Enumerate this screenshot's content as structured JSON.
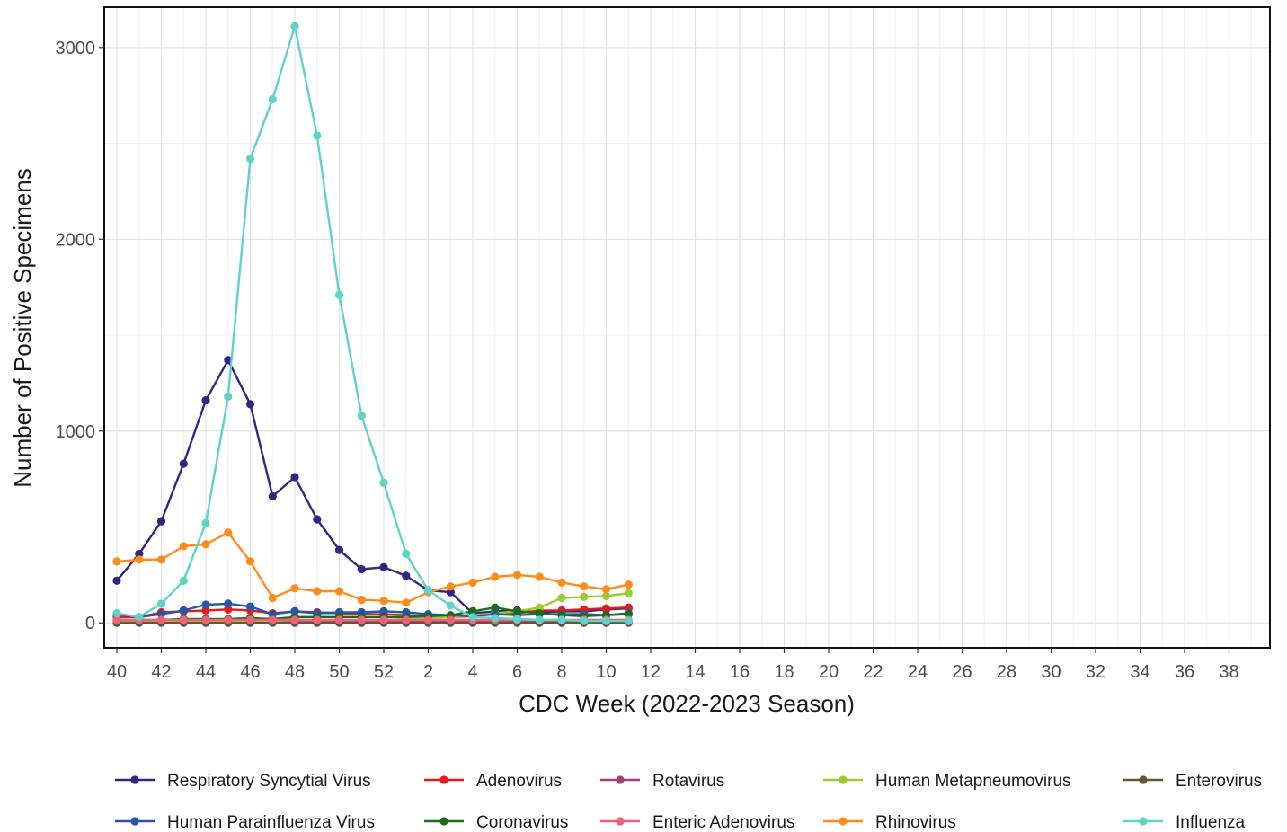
{
  "chart_data": {
    "type": "line",
    "title": "",
    "xlabel": "CDC Week (2022-2023 Season)",
    "ylabel": "Number of Positive Specimens",
    "x_tick_labels": [
      "40",
      "42",
      "44",
      "46",
      "48",
      "50",
      "52",
      "2",
      "4",
      "6",
      "8",
      "10",
      "12",
      "14",
      "16",
      "18",
      "20",
      "22",
      "24",
      "26",
      "28",
      "30",
      "32",
      "34",
      "36",
      "38"
    ],
    "x_weeks": [
      "40",
      "41",
      "42",
      "43",
      "44",
      "45",
      "46",
      "47",
      "48",
      "49",
      "50",
      "51",
      "52",
      "1",
      "2",
      "3",
      "4",
      "5",
      "6",
      "7",
      "8",
      "9",
      "10",
      "11"
    ],
    "y_ticks": [
      0,
      1000,
      2000,
      3000
    ],
    "ylim": [
      -130,
      3210
    ],
    "grid": true,
    "legend_position": "bottom",
    "series": [
      {
        "name": "Respiratory Syncytial Virus",
        "color": "#312783",
        "values": [
          220,
          360,
          530,
          830,
          1160,
          1370,
          1140,
          660,
          760,
          540,
          380,
          280,
          290,
          245,
          170,
          160,
          50,
          60,
          65,
          55,
          60,
          60,
          70,
          75
        ]
      },
      {
        "name": "Adenovirus",
        "color": "#e41a1c",
        "values": [
          30,
          30,
          55,
          60,
          65,
          70,
          65,
          50,
          60,
          55,
          50,
          45,
          45,
          40,
          35,
          30,
          35,
          45,
          50,
          65,
          65,
          70,
          75,
          80
        ]
      },
      {
        "name": "Rotavirus",
        "color": "#a63e7a",
        "values": [
          5,
          5,
          5,
          5,
          5,
          5,
          5,
          5,
          5,
          5,
          5,
          5,
          5,
          5,
          5,
          5,
          5,
          5,
          5,
          5,
          5,
          5,
          5,
          5
        ]
      },
      {
        "name": "Human Metapneumovirus",
        "color": "#9acd32",
        "values": [
          10,
          10,
          10,
          10,
          10,
          10,
          10,
          10,
          15,
          15,
          15,
          15,
          15,
          20,
          25,
          30,
          40,
          50,
          60,
          80,
          130,
          135,
          140,
          155
        ]
      },
      {
        "name": "Enterovirus",
        "color": "#6b5236",
        "values": [
          0,
          0,
          0,
          0,
          0,
          0,
          0,
          0,
          0,
          0,
          0,
          0,
          0,
          0,
          0,
          0,
          0,
          0,
          0,
          0,
          0,
          0,
          0,
          0
        ]
      },
      {
        "name": "Human Parainfluenza Virus",
        "color": "#2557a7",
        "values": [
          45,
          30,
          45,
          65,
          95,
          100,
          85,
          45,
          60,
          50,
          55,
          55,
          60,
          55,
          45,
          40,
          35,
          45,
          40,
          45,
          45,
          45,
          40,
          50
        ]
      },
      {
        "name": "Coronavirus",
        "color": "#1b6b1b",
        "values": [
          15,
          15,
          15,
          20,
          20,
          20,
          25,
          20,
          30,
          30,
          30,
          30,
          30,
          30,
          35,
          40,
          60,
          80,
          60,
          50,
          40,
          35,
          40,
          45
        ]
      },
      {
        "name": "Enteric Adenovirus",
        "color": "#f0607a",
        "values": [
          15,
          15,
          15,
          15,
          15,
          15,
          15,
          15,
          15,
          15,
          15,
          15,
          15,
          15,
          15,
          15,
          15,
          15,
          15,
          15,
          15,
          15,
          15,
          15
        ]
      },
      {
        "name": "Rhinovirus",
        "color": "#ff8c1a",
        "values": [
          320,
          330,
          330,
          400,
          410,
          470,
          320,
          130,
          180,
          165,
          165,
          120,
          115,
          105,
          160,
          190,
          210,
          240,
          250,
          240,
          210,
          190,
          175,
          200
        ]
      },
      {
        "name": "Influenza",
        "color": "#5fd3c8",
        "values": [
          50,
          30,
          100,
          220,
          520,
          1180,
          2420,
          2730,
          3110,
          2540,
          1710,
          1080,
          730,
          360,
          170,
          90,
          30,
          25,
          20,
          15,
          15,
          10,
          10,
          10
        ]
      }
    ]
  }
}
